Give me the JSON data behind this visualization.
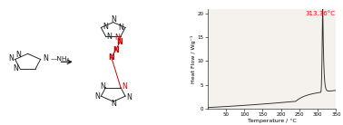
{
  "graph_xlim": [
    0,
    350
  ],
  "graph_ylim": [
    0,
    21
  ],
  "graph_xticks": [
    50,
    100,
    150,
    200,
    250,
    300,
    350
  ],
  "graph_yticks": [
    0,
    5,
    10,
    15,
    20
  ],
  "xlabel": "Temperature / °C",
  "ylabel": "Heat Flow / Wg⁻¹",
  "peak_label": "313.36°C",
  "peak_temp": 313.36,
  "peak_color": "#ff0000",
  "line_color": "#2a2a2a",
  "bg_color": "#f5f2ee",
  "annotation_fontsize": 5.0,
  "axis_fontsize": 4.5,
  "tick_fontsize": 4.0,
  "black": "#1a1a1a",
  "red": "#cc0000"
}
